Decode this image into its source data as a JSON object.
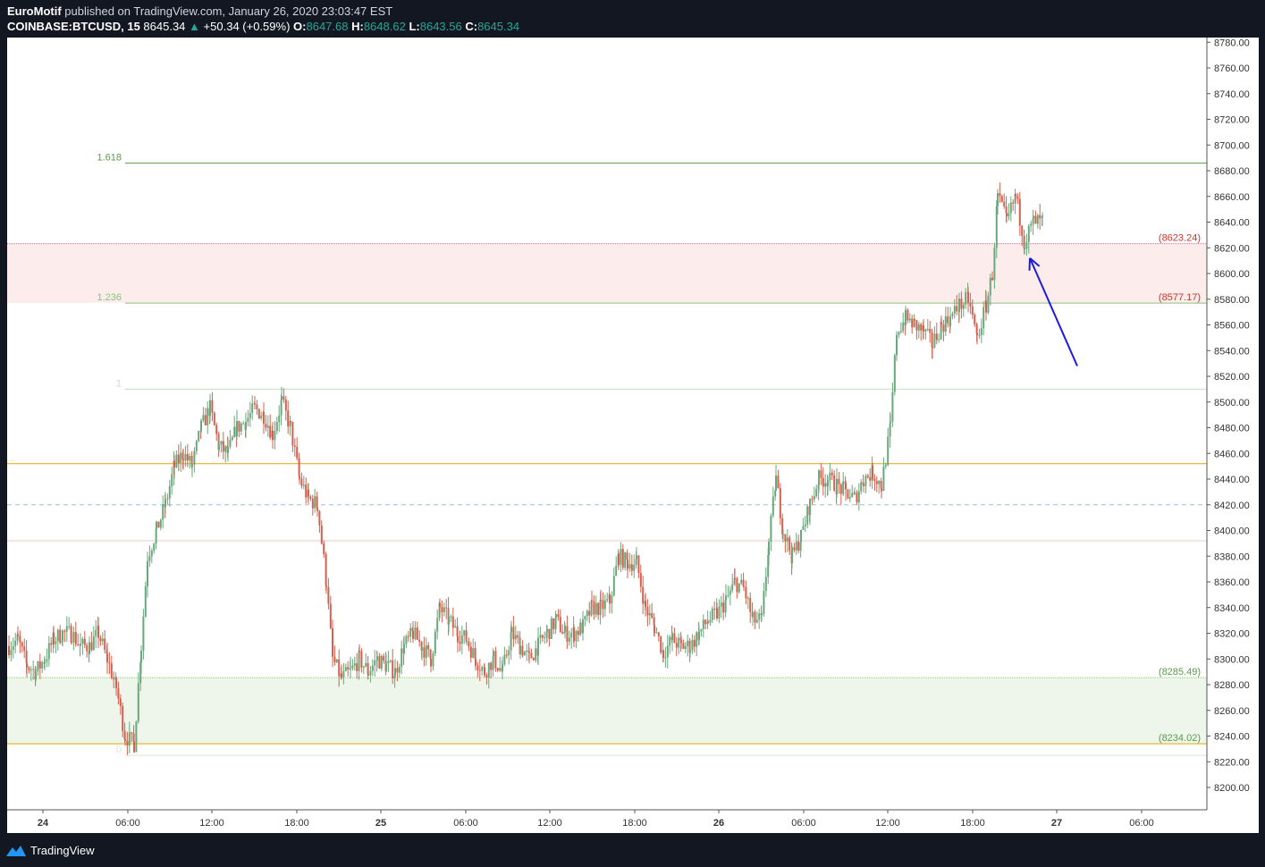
{
  "header": {
    "author": "EuroMotif",
    "published_text": "published on TradingView.com, January 26, 2020 23:03:47 EST",
    "symbol": "COINBASE:BTCUSD, 15",
    "last": "8645.34",
    "change": "+50.34 (+0.59%)",
    "o_label": "O:",
    "o_value": "8647.68",
    "h_label": "H:",
    "h_value": "8648.62",
    "l_label": "L:",
    "l_value": "8643.56",
    "c_label": "C:",
    "c_value": "8645.34"
  },
  "footer": {
    "brand": "TradingView"
  },
  "colors": {
    "up": "#6aa77c",
    "down": "#d65f4e",
    "background": "#ffffff",
    "axis_text": "#333333",
    "fib_green": "#5b9a4e",
    "zone_red": "#fcecec",
    "zone_green": "#eef5ea",
    "orange_line": "#e6a400",
    "arrow": "#1a1ae6"
  },
  "chart_data": {
    "type": "candlestick",
    "y_range": [
      8190,
      8782
    ],
    "y_ticks": [
      "8200.00",
      "8220.00",
      "8240.00",
      "8260.00",
      "8280.00",
      "8300.00",
      "8320.00",
      "8340.00",
      "8360.00",
      "8380.00",
      "8400.00",
      "8420.00",
      "8440.00",
      "8460.00",
      "8480.00",
      "8500.00",
      "8520.00",
      "8540.00",
      "8560.00",
      "8580.00",
      "8600.00",
      "8620.00",
      "8640.00",
      "8660.00",
      "8680.00",
      "8700.00",
      "8720.00",
      "8740.00",
      "8760.00",
      "8780.00"
    ],
    "x_ticks": [
      "24",
      "06:00",
      "12:00",
      "18:00",
      "25",
      "06:00",
      "12:00",
      "18:00",
      "26",
      "06:00",
      "12:00",
      "18:00",
      "27",
      "06:00"
    ],
    "fib_levels": [
      {
        "label": "1.618",
        "price": 8686
      },
      {
        "label": "1.236",
        "price": 8577
      },
      {
        "label": "1",
        "price": 8510
      },
      {
        "label": "0",
        "price": 8225
      }
    ],
    "zone_labels": [
      "(8623.24)",
      "(8577.17)",
      "(8285.49)",
      "(8234.02)"
    ],
    "zones": [
      {
        "top": 8623.24,
        "bottom": 8577.17,
        "kind": "resistance"
      },
      {
        "top": 8285.49,
        "bottom": 8234.02,
        "kind": "support"
      }
    ],
    "horizontal_lines": [
      {
        "price": 8452,
        "style": "orange"
      },
      {
        "price": 8234,
        "style": "orange"
      },
      {
        "price": 8420,
        "style": "dashed-blue"
      },
      {
        "price": 8392,
        "style": "thin-red"
      }
    ],
    "candle_anchor_points": [
      [
        0,
        8310
      ],
      [
        10,
        8315
      ],
      [
        20,
        8295
      ],
      [
        30,
        8290
      ],
      [
        40,
        8300
      ],
      [
        50,
        8315
      ],
      [
        60,
        8320
      ],
      [
        70,
        8320
      ],
      [
        80,
        8310
      ],
      [
        90,
        8310
      ],
      [
        100,
        8320
      ],
      [
        110,
        8300
      ],
      [
        120,
        8278
      ],
      [
        130,
        8240
      ],
      [
        140,
        8234
      ],
      [
        148,
        8310
      ],
      [
        155,
        8380
      ],
      [
        165,
        8400
      ],
      [
        175,
        8420
      ],
      [
        185,
        8450
      ],
      [
        195,
        8460
      ],
      [
        205,
        8450
      ],
      [
        215,
        8480
      ],
      [
        225,
        8495
      ],
      [
        235,
        8465
      ],
      [
        245,
        8460
      ],
      [
        255,
        8480
      ],
      [
        265,
        8485
      ],
      [
        275,
        8495
      ],
      [
        285,
        8490
      ],
      [
        295,
        8475
      ],
      [
        305,
        8500
      ],
      [
        315,
        8480
      ],
      [
        325,
        8440
      ],
      [
        335,
        8425
      ],
      [
        345,
        8420
      ],
      [
        355,
        8360
      ],
      [
        362,
        8300
      ],
      [
        372,
        8285
      ],
      [
        382,
        8290
      ],
      [
        392,
        8300
      ],
      [
        402,
        8290
      ],
      [
        412,
        8300
      ],
      [
        422,
        8295
      ],
      [
        432,
        8290
      ],
      [
        442,
        8310
      ],
      [
        452,
        8320
      ],
      [
        462,
        8310
      ],
      [
        472,
        8300
      ],
      [
        482,
        8340
      ],
      [
        492,
        8330
      ],
      [
        502,
        8320
      ],
      [
        512,
        8315
      ],
      [
        522,
        8300
      ],
      [
        532,
        8290
      ],
      [
        542,
        8300
      ],
      [
        552,
        8290
      ],
      [
        562,
        8320
      ],
      [
        572,
        8310
      ],
      [
        582,
        8300
      ],
      [
        592,
        8310
      ],
      [
        602,
        8320
      ],
      [
        612,
        8330
      ],
      [
        622,
        8320
      ],
      [
        632,
        8320
      ],
      [
        642,
        8325
      ],
      [
        652,
        8340
      ],
      [
        662,
        8340
      ],
      [
        672,
        8345
      ],
      [
        682,
        8380
      ],
      [
        692,
        8375
      ],
      [
        702,
        8375
      ],
      [
        712,
        8340
      ],
      [
        722,
        8325
      ],
      [
        732,
        8305
      ],
      [
        742,
        8315
      ],
      [
        752,
        8310
      ],
      [
        762,
        8310
      ],
      [
        772,
        8320
      ],
      [
        782,
        8330
      ],
      [
        792,
        8335
      ],
      [
        802,
        8345
      ],
      [
        812,
        8360
      ],
      [
        822,
        8355
      ],
      [
        832,
        8330
      ],
      [
        842,
        8330
      ],
      [
        850,
        8390
      ],
      [
        858,
        8440
      ],
      [
        866,
        8400
      ],
      [
        876,
        8380
      ],
      [
        886,
        8395
      ],
      [
        896,
        8420
      ],
      [
        906,
        8440
      ],
      [
        916,
        8440
      ],
      [
        926,
        8435
      ],
      [
        936,
        8430
      ],
      [
        946,
        8425
      ],
      [
        956,
        8440
      ],
      [
        966,
        8445
      ],
      [
        976,
        8435
      ],
      [
        986,
        8480
      ],
      [
        993,
        8555
      ],
      [
        1003,
        8565
      ],
      [
        1013,
        8560
      ],
      [
        1023,
        8555
      ],
      [
        1033,
        8545
      ],
      [
        1043,
        8560
      ],
      [
        1053,
        8565
      ],
      [
        1063,
        8575
      ],
      [
        1073,
        8580
      ],
      [
        1083,
        8550
      ],
      [
        1093,
        8575
      ],
      [
        1100,
        8600
      ],
      [
        1106,
        8660
      ],
      [
        1116,
        8640
      ],
      [
        1126,
        8660
      ],
      [
        1136,
        8625
      ],
      [
        1146,
        8640
      ],
      [
        1156,
        8640
      ],
      [
        1166,
        8645
      ]
    ],
    "annotation_arrow": {
      "from_candle_index": 1205,
      "from_price": 8528,
      "to_candle_index": 1152,
      "to_price": 8612
    }
  }
}
